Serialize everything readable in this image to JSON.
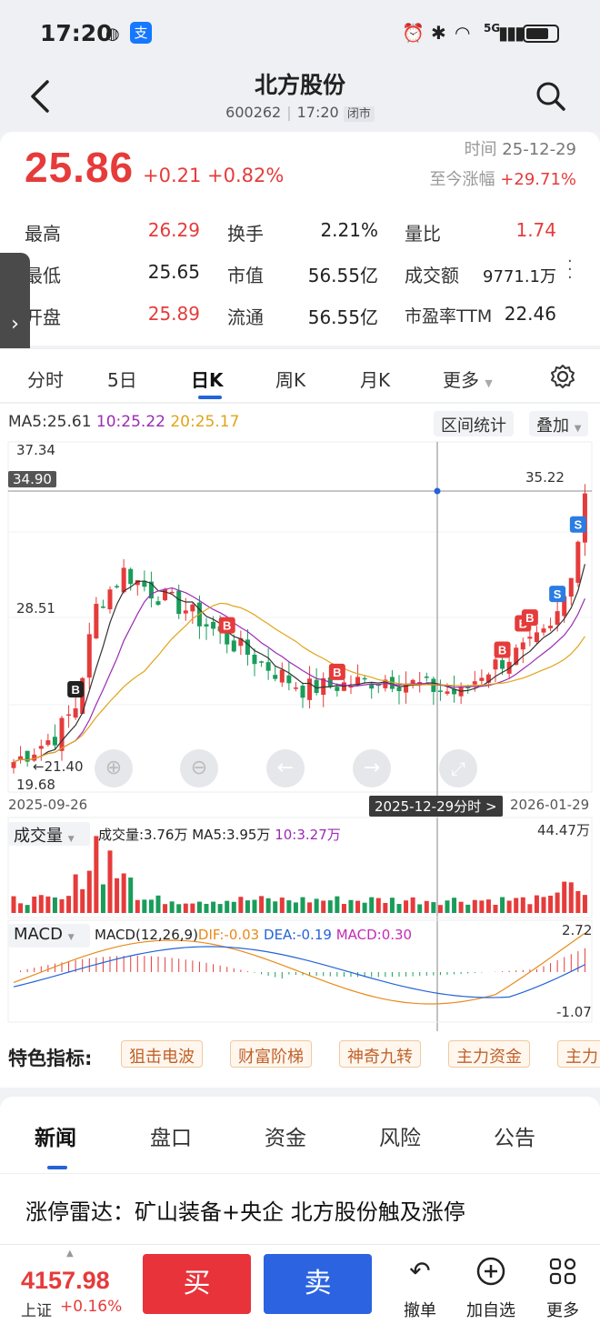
{
  "status": {
    "time": "17:20",
    "app_badge": "支",
    "network": "5G"
  },
  "header": {
    "title": "北方股份",
    "code": "600262",
    "time": "17:20",
    "market_state": "闭市"
  },
  "quote": {
    "price": "25.86",
    "change": "+0.21",
    "change_pct": "+0.82%",
    "time_label": "时间",
    "date": "25-12-29",
    "ytd_label": "至今涨幅",
    "ytd_value": "+29.71%",
    "stats": [
      {
        "label": "最高",
        "value": "26.29",
        "color": "red"
      },
      {
        "label": "换手",
        "value": "2.21%",
        "color": "black"
      },
      {
        "label": "量比",
        "value": "1.74",
        "color": "red"
      },
      {
        "label": "最低",
        "value": "25.65",
        "color": "black"
      },
      {
        "label": "市值",
        "value": "56.55亿",
        "color": "black"
      },
      {
        "label": "成交额",
        "value": "9771.1万",
        "color": "black"
      },
      {
        "label": "开盘",
        "value": "25.89",
        "color": "red"
      },
      {
        "label": "流通",
        "value": "56.55亿",
        "color": "black"
      },
      {
        "label": "市盈率TTM",
        "value": "22.46",
        "color": "black"
      }
    ]
  },
  "chart_tabs": [
    "分时",
    "5日",
    "日K",
    "周K",
    "月K",
    "更多"
  ],
  "chart_controls": {
    "range_stats": "区间统计",
    "overlay": "叠加"
  },
  "ma": {
    "ma5": "MA5:25.61",
    "ma10": "10:25.22",
    "ma20": "20:25.17"
  },
  "axis": {
    "y_top": "37.34",
    "y_cross": "34.90",
    "y_mid": "28.51",
    "y_bottom": "19.68",
    "y_low_label": "21.40",
    "high_mark": "35.22",
    "start_date": "2025-09-26",
    "end_date": "2026-01-29",
    "cursor_label": "2025-12-29分时 >"
  },
  "volume": {
    "label": "成交量",
    "text": "成交量:3.76万",
    "ma5": "MA5:3.95万",
    "ma10": "10:3.27万",
    "max": "44.47万"
  },
  "macd": {
    "label": "MACD",
    "params": "MACD(12,26,9)",
    "dif": "DIF:-0.03",
    "dea": "DEA:-0.19",
    "macd": "MACD:0.30",
    "max": "2.72",
    "min": "-1.07"
  },
  "features": {
    "label": "特色指标:",
    "chips": [
      "狙击电波",
      "财富阶梯",
      "神奇九转",
      "主力资金",
      "主力"
    ]
  },
  "news_tabs": [
    "新闻",
    "盘口",
    "资金",
    "风险",
    "公告"
  ],
  "headline": "涨停雷达：矿山装备+央企 北方股份触及涨停",
  "bottom": {
    "index_value": "4157.98",
    "index_name": "上证",
    "index_change": "+0.16%",
    "buy": "买",
    "sell": "卖",
    "cancel": "撤单",
    "add_watch": "加自选",
    "more": "更多"
  },
  "colors": {
    "up": "#e63b3b",
    "down": "#1a9c5b",
    "ma5": "#333333",
    "ma10": "#9b2bb5",
    "ma20": "#e0a418",
    "accent": "#2463d8"
  }
}
